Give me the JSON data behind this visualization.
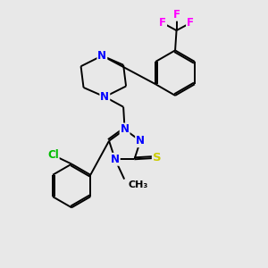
{
  "bg_color": "#e8e8e8",
  "bond_color": "#000000",
  "N_color": "#0000ff",
  "S_color": "#cccc00",
  "Cl_color": "#00bb00",
  "F_color": "#ff00ff",
  "font_size": 8.5,
  "lw": 1.4,
  "figsize": [
    3.0,
    3.0
  ],
  "dpi": 100,
  "xlim": [
    0,
    10
  ],
  "ylim": [
    0,
    10
  ]
}
